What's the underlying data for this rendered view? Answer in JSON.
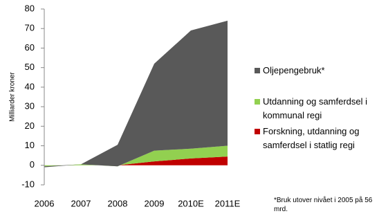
{
  "chart_data": {
    "type": "stacked-area",
    "y_label": "Milliarder kroner",
    "categories": [
      "2006",
      "2007",
      "2008",
      "2009",
      "2010E",
      "2011E"
    ],
    "series": [
      {
        "name": "Oljepengebruk*",
        "color": "#595959",
        "values": [
          -0.5,
          0,
          11,
          44.5,
          60.5,
          64
        ]
      },
      {
        "name": "Utdanning og samferdsel i kommunal regi",
        "color": "#92d050",
        "values": [
          -0.5,
          0.5,
          -0.5,
          5.5,
          5,
          5.5
        ]
      },
      {
        "name": "Forskning, utdanning og samferdsel i statlig regi",
        "color": "#c00000",
        "values": [
          0,
          0,
          0,
          2,
          3.5,
          4.5
        ]
      }
    ],
    "ylim": [
      -10,
      80
    ],
    "yticks": [
      -10,
      0,
      10,
      20,
      30,
      40,
      50,
      60,
      70,
      80
    ],
    "grid": false,
    "footnote": "*Bruk utover nivået i 2005 på 56 mrd."
  }
}
